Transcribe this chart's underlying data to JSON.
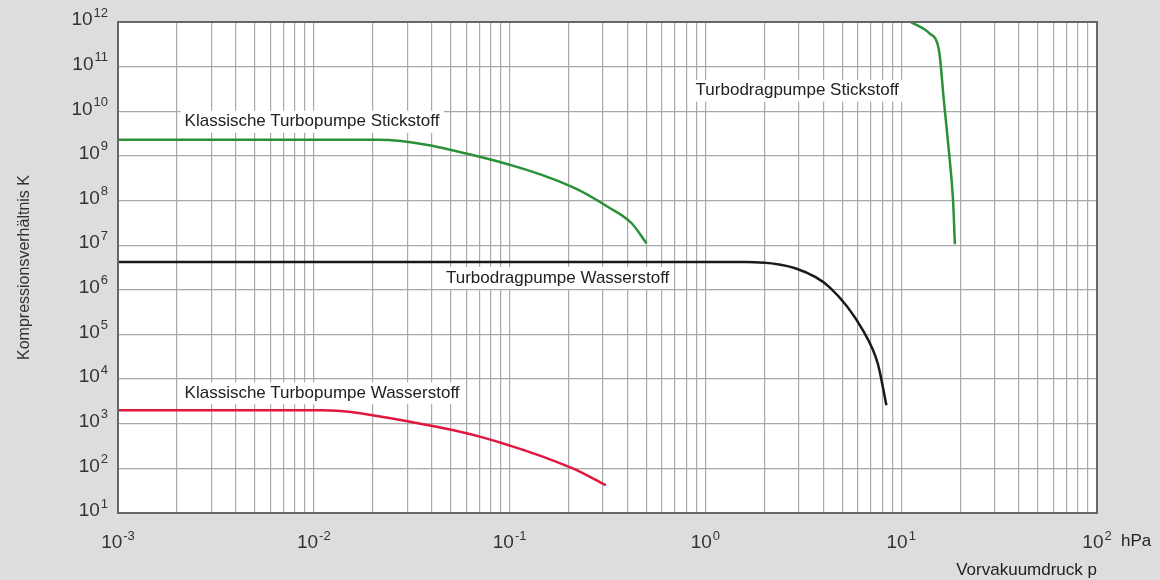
{
  "chart_data": {
    "type": "line",
    "xlabel": "Vorvakuumdruck p",
    "ylabel": "Kompressionsverhältnis K",
    "annotations": [
      "hPa"
    ],
    "log": "xy",
    "grid": true,
    "legend": false,
    "marker": "none",
    "line_style": "solid",
    "xlim": [
      0.001,
      100
    ],
    "ylim": [
      10,
      1000000000000
    ],
    "xticks": [
      {
        "value": 0.001,
        "label": "10$^{-3}$"
      },
      {
        "value": 0.002,
        "label": null
      },
      {
        "value": 0.003,
        "label": null
      },
      {
        "value": 0.004,
        "label": null
      },
      {
        "value": 0.005,
        "label": null
      },
      {
        "value": 0.006,
        "label": null
      },
      {
        "value": 0.007,
        "label": null
      },
      {
        "value": 0.008,
        "label": null
      },
      {
        "value": 0.009,
        "label": null
      },
      {
        "value": 0.01,
        "label": "10$^{-2}$"
      },
      {
        "value": 0.02,
        "label": null
      },
      {
        "value": 0.03,
        "label": null
      },
      {
        "value": 0.04,
        "label": null
      },
      {
        "value": 0.05,
        "label": null
      },
      {
        "value": 0.06,
        "label": null
      },
      {
        "value": 0.07,
        "label": null
      },
      {
        "value": 0.08,
        "label": null
      },
      {
        "value": 0.09,
        "label": null
      },
      {
        "value": 0.1,
        "label": "10$^{-1}$"
      },
      {
        "value": 0.2,
        "label": null
      },
      {
        "value": 0.3,
        "label": null
      },
      {
        "value": 0.4,
        "label": null
      },
      {
        "value": 0.5,
        "label": null
      },
      {
        "value": 0.6,
        "label": null
      },
      {
        "value": 0.7,
        "label": null
      },
      {
        "value": 0.8,
        "label": null
      },
      {
        "value": 0.9,
        "label": null
      },
      {
        "value": 1,
        "label": "10$^{0}$"
      },
      {
        "value": 2,
        "label": null
      },
      {
        "value": 3,
        "label": null
      },
      {
        "value": 4,
        "label": null
      },
      {
        "value": 5,
        "label": null
      },
      {
        "value": 6,
        "label": null
      },
      {
        "value": 7,
        "label": null
      },
      {
        "value": 8,
        "label": null
      },
      {
        "value": 9,
        "label": null
      },
      {
        "value": 10,
        "label": "10$^{1}$"
      },
      {
        "value": 20,
        "label": null
      },
      {
        "value": 30,
        "label": null
      },
      {
        "value": 40,
        "label": null
      },
      {
        "value": 50,
        "label": null
      },
      {
        "value": 60,
        "label": null
      },
      {
        "value": 70,
        "label": null
      },
      {
        "value": 80,
        "label": null
      },
      {
        "value": 90,
        "label": null
      },
      {
        "value": 100,
        "label": "10$^{2}$"
      }
    ],
    "yticks": [
      {
        "value": 10,
        "label": "10$^{1}$"
      },
      {
        "value": 100,
        "label": "10$^{2}$"
      },
      {
        "value": 1000,
        "label": "10$^{3}$"
      },
      {
        "value": 10000,
        "label": "10$^{4}$"
      },
      {
        "value": 100000,
        "label": "10$^{5}$"
      },
      {
        "value": 1000000,
        "label": "10$^{6}$"
      },
      {
        "value": 10000000,
        "label": "10$^{7}$"
      },
      {
        "value": 100000000,
        "label": "10$^{8}$"
      },
      {
        "value": 1000000000,
        "label": "10$^{9}$"
      },
      {
        "value": 10000000000,
        "label": "10$^{10}$"
      },
      {
        "value": 100000000000,
        "label": "10$^{11}$"
      },
      {
        "value": 1000000000000,
        "label": "10$^{12}$"
      }
    ],
    "series": [
      {
        "name": "Klassische Turbopumpe Stickstoff",
        "color": "#2a9139",
        "x": [
          0.001,
          0.021,
          0.072,
          0.21,
          0.32,
          0.42,
          0.5
        ],
        "values": [
          2300000000,
          2300000000,
          930000000,
          200000000,
          71000000,
          31000000,
          11000000
        ]
      },
      {
        "name": "Turbodragpumpe Wasserstoff",
        "color": "#1a1a1a",
        "x": [
          0.001,
          1.6,
          2.9,
          4.3,
          6.4,
          7.6,
          8.4
        ],
        "values": [
          4200000,
          4200000,
          3000000,
          1150000,
          120000,
          22000,
          2600
        ]
      },
      {
        "name": "Klassische Turbopumpe Wasserstoff",
        "color": "#e0173f",
        "x": [
          0.001,
          0.011,
          0.035,
          0.072,
          0.21,
          0.31
        ],
        "values": [
          2000,
          2000,
          1000,
          500,
          100,
          42
        ]
      },
      {
        "name": "Turbodragpumpe Stickstoff",
        "color": "#2a9139",
        "x": [
          11.2,
          13.9,
          15.6,
          16.5,
          17.5,
          18.4,
          18.8
        ],
        "values": [
          1000000000000,
          560000000000,
          230000000000,
          18000000000,
          1350000000,
          100000000,
          10500000
        ]
      }
    ]
  }
}
